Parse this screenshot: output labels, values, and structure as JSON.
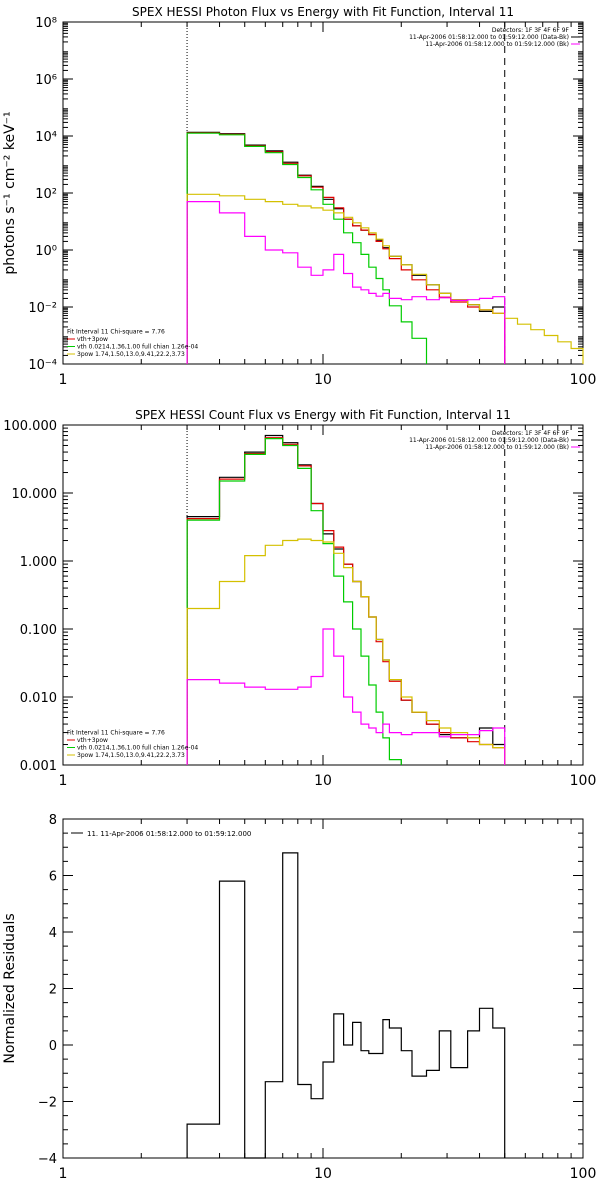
{
  "chart_data": [
    {
      "type": "line",
      "title": "SPEX HESSI Photon Flux vs Energy with Fit Function, Interval 11",
      "ylabel": "photons s⁻¹ cm⁻² keV⁻¹",
      "xlabel": "",
      "xscale": "log",
      "yscale": "log",
      "xlim": [
        1,
        100
      ],
      "ylim": [
        0.0001,
        100000000
      ],
      "xticks": [
        {
          "v": 1,
          "label": "1"
        },
        {
          "v": 10,
          "label": "10"
        },
        {
          "v": 100,
          "label": "100"
        }
      ],
      "yticks": [
        {
          "v": 0.0001,
          "label": "10⁻⁴"
        },
        {
          "v": 0.01,
          "label": "10⁻²"
        },
        {
          "v": 1,
          "label": "10⁰"
        },
        {
          "v": 100,
          "label": "10²"
        },
        {
          "v": 10000,
          "label": "10⁴"
        },
        {
          "v": 1000000,
          "label": "10⁶"
        },
        {
          "v": 100000000,
          "label": "10⁸"
        }
      ],
      "vlines": [
        {
          "x": 3,
          "style": "dotted"
        },
        {
          "x": 50,
          "style": "dashed"
        }
      ],
      "legend_top": {
        "lines": [
          {
            "text": "Detectors: 1F 3F 4F 6F 9F",
            "color": "#000000"
          },
          {
            "text": "11-Apr-2006 01:58:12.000 to 01:59:12.000 (Data-Bk)",
            "color": "#000000"
          },
          {
            "text": "11-Apr-2006 01:58:12.000 to 01:59:12.000 (Bk)",
            "color": "#ff00ff"
          }
        ]
      },
      "legend_bottom": {
        "lines": [
          {
            "text": "Fit Interval 11    Chi-square = 7.76",
            "color": "#000000"
          },
          {
            "text": "vth+3pow",
            "color": "#e00000"
          },
          {
            "text": "vth 0.0214,1.36,1.00  full chian 1.26e-04",
            "color": "#00cc00"
          },
          {
            "text": "3pow 1.74,1.50,13.0,9.41,22.2,3.73",
            "color": "#d4c000"
          }
        ]
      },
      "series": [
        {
          "name": "Data-Bk",
          "color": "#000000",
          "edges": [
            3,
            4,
            5,
            6,
            7,
            8,
            9,
            10,
            11,
            12,
            13,
            14,
            15,
            16,
            17,
            18,
            20,
            22,
            25,
            28,
            31,
            36,
            40,
            45,
            50
          ],
          "values": [
            13500,
            12000,
            4800,
            3000,
            1200,
            420,
            170,
            60,
            28,
            12,
            7,
            5,
            3.5,
            2.2,
            1.2,
            0.6,
            0.3,
            0.13,
            0.06,
            0.03,
            0.018,
            0.012,
            0.007,
            0.01
          ]
        },
        {
          "name": "vth+3pow",
          "color": "#e00000",
          "edges": [
            3,
            4,
            5,
            6,
            7,
            8,
            9,
            10,
            11,
            12,
            13,
            14,
            15,
            16,
            17,
            18,
            20,
            22,
            25,
            28,
            31,
            36,
            40,
            45,
            50
          ],
          "values": [
            13000,
            11500,
            4500,
            2800,
            1100,
            400,
            160,
            70,
            30,
            12,
            7,
            5,
            3.5,
            2,
            1.1,
            0.5,
            0.2,
            0.09,
            0.04,
            0.022,
            0.015,
            0.01,
            0.008,
            0.006
          ]
        },
        {
          "name": "vth",
          "color": "#00cc00",
          "edges": [
            3,
            4,
            5,
            6,
            7,
            8,
            9,
            10,
            11,
            12,
            13,
            14,
            15,
            16,
            17,
            18,
            20,
            22,
            25
          ],
          "values": [
            12500,
            11000,
            4300,
            2600,
            1000,
            350,
            130,
            40,
            12,
            4,
            1.8,
            0.7,
            0.25,
            0.1,
            0.04,
            0.011,
            0.003,
            0.0008
          ]
        },
        {
          "name": "3pow",
          "color": "#d4c000",
          "edges": [
            3,
            4,
            5,
            6,
            7,
            8,
            9,
            10,
            11,
            12,
            13,
            14,
            15,
            16,
            17,
            18,
            20,
            22,
            25,
            28,
            31,
            36,
            40,
            45,
            50,
            56,
            63,
            71,
            80,
            90,
            100
          ],
          "values": [
            90,
            80,
            60,
            50,
            40,
            35,
            30,
            25,
            20,
            14,
            9,
            6,
            4,
            2.4,
            1.4,
            0.6,
            0.3,
            0.14,
            0.06,
            0.03,
            0.018,
            0.012,
            0.008,
            0.006,
            0.004,
            0.0025,
            0.0016,
            0.001,
            0.0006,
            0.00035
          ]
        },
        {
          "name": "Bk",
          "color": "#ff00ff",
          "edges": [
            3,
            4,
            5,
            6,
            7,
            8,
            9,
            10,
            11,
            12,
            13,
            14,
            15,
            16,
            17,
            18,
            20,
            22,
            25,
            28,
            31,
            36,
            40,
            45,
            50
          ],
          "values": [
            50,
            20,
            3,
            1,
            0.8,
            0.25,
            0.13,
            0.2,
            0.7,
            0.15,
            0.05,
            0.04,
            0.03,
            0.024,
            0.03,
            0.02,
            0.018,
            0.023,
            0.018,
            0.021,
            0.017,
            0.018,
            0.02,
            0.023
          ]
        }
      ]
    },
    {
      "type": "line",
      "title": "SPEX HESSI Count Flux vs Energy with Fit Function, Interval 11",
      "xlabel": "",
      "ylabel": "",
      "xscale": "log",
      "yscale": "log",
      "xlim": [
        1,
        100
      ],
      "ylim": [
        0.001,
        100
      ],
      "xticks": [
        {
          "v": 1,
          "label": "1"
        },
        {
          "v": 10,
          "label": "10"
        },
        {
          "v": 100,
          "label": "100"
        }
      ],
      "yticks": [
        {
          "v": 0.001,
          "label": "0.001"
        },
        {
          "v": 0.01,
          "label": "0.010"
        },
        {
          "v": 0.1,
          "label": "0.100"
        },
        {
          "v": 1,
          "label": "1.000"
        },
        {
          "v": 10,
          "label": "10.000"
        },
        {
          "v": 100,
          "label": "100.000"
        }
      ],
      "vlines": [
        {
          "x": 3,
          "style": "dotted"
        },
        {
          "x": 50,
          "style": "dashed"
        }
      ],
      "legend_top": {
        "lines": [
          {
            "text": "Detectors: 1F 3F 4F 6F 9F",
            "color": "#000000"
          },
          {
            "text": "11-Apr-2006 01:58:12.000 to 01:59:12.000 (Data-Bk)",
            "color": "#000000"
          },
          {
            "text": "11-Apr-2006 01:58:12.000 to 01:59:12.000 (Bk)",
            "color": "#ff00ff"
          }
        ]
      },
      "legend_bottom": {
        "lines": [
          {
            "text": "Fit Interval 11    Chi-square = 7.76",
            "color": "#000000"
          },
          {
            "text": "vth+3pow",
            "color": "#e00000"
          },
          {
            "text": "vth 0.0214,1.36,1.00  full chian 1.26e-04",
            "color": "#00cc00"
          },
          {
            "text": "3pow 1.74,1.50,13.0,9.41,22.2,3.73",
            "color": "#d4c000"
          }
        ]
      },
      "series": [
        {
          "name": "Data-Bk",
          "color": "#000000",
          "edges": [
            3,
            4,
            5,
            6,
            7,
            8,
            9,
            10,
            11,
            12,
            13,
            14,
            15,
            16,
            17,
            18,
            20,
            22,
            25,
            28,
            31,
            36,
            40,
            45,
            50
          ],
          "values": [
            4.5,
            17,
            40,
            70,
            55,
            26,
            7,
            2.5,
            1.5,
            0.9,
            0.5,
            0.3,
            0.15,
            0.07,
            0.035,
            0.018,
            0.009,
            0.006,
            0.004,
            0.0028,
            0.0025,
            0.0025,
            0.0035,
            0.002
          ]
        },
        {
          "name": "vth+3pow",
          "color": "#e00000",
          "edges": [
            3,
            4,
            5,
            6,
            7,
            8,
            9,
            10,
            11,
            12,
            13,
            14,
            15,
            16,
            17,
            18,
            20,
            22,
            25,
            28,
            31,
            36,
            40,
            45,
            50
          ],
          "values": [
            4.2,
            16,
            38,
            65,
            52,
            25,
            7,
            2.8,
            1.6,
            0.9,
            0.5,
            0.3,
            0.15,
            0.065,
            0.033,
            0.017,
            0.009,
            0.006,
            0.004,
            0.003,
            0.0025,
            0.0022,
            0.002,
            0.0018
          ]
        },
        {
          "name": "vth",
          "color": "#00cc00",
          "edges": [
            3,
            4,
            5,
            6,
            7,
            8,
            9,
            10,
            11,
            12,
            13,
            14,
            15,
            16,
            17,
            18,
            20
          ],
          "values": [
            4,
            15,
            37,
            63,
            50,
            23,
            5.5,
            1.8,
            0.6,
            0.25,
            0.1,
            0.04,
            0.015,
            0.006,
            0.0025,
            0.0012
          ]
        },
        {
          "name": "3pow",
          "color": "#d4c000",
          "edges": [
            3,
            4,
            5,
            6,
            7,
            8,
            9,
            10,
            11,
            12,
            13,
            14,
            15,
            16,
            17,
            18,
            20,
            22,
            25,
            28,
            31,
            36,
            40,
            45,
            50
          ],
          "values": [
            0.2,
            0.5,
            1.2,
            1.7,
            2.0,
            2.1,
            2.0,
            1.9,
            1.3,
            0.8,
            0.5,
            0.3,
            0.15,
            0.07,
            0.035,
            0.018,
            0.01,
            0.006,
            0.0045,
            0.0035,
            0.003,
            0.0025,
            0.002,
            0.0018
          ]
        },
        {
          "name": "Bk",
          "color": "#ff00ff",
          "edges": [
            3,
            4,
            5,
            6,
            7,
            8,
            9,
            10,
            11,
            12,
            13,
            14,
            15,
            16,
            17,
            18,
            20,
            22,
            25,
            28,
            31,
            36,
            40,
            45,
            50
          ],
          "values": [
            0.018,
            0.016,
            0.014,
            0.013,
            0.013,
            0.014,
            0.02,
            0.1,
            0.04,
            0.01,
            0.006,
            0.004,
            0.0035,
            0.003,
            0.004,
            0.003,
            0.0028,
            0.003,
            0.003,
            0.0026,
            0.0028,
            0.0028,
            0.0032,
            0.0035
          ]
        }
      ]
    },
    {
      "type": "line",
      "title": "",
      "xlabel": "",
      "ylabel": "Normalized Residuals",
      "xscale": "log",
      "yscale": "linear",
      "xlim": [
        1,
        100
      ],
      "ylim": [
        -4,
        8
      ],
      "xticks": [
        {
          "v": 1,
          "label": "1"
        },
        {
          "v": 10,
          "label": "10"
        },
        {
          "v": 100,
          "label": "100"
        }
      ],
      "yticks": [
        {
          "v": -4,
          "label": "−4"
        },
        {
          "v": -2,
          "label": "−2"
        },
        {
          "v": 0,
          "label": "0"
        },
        {
          "v": 2,
          "label": "2"
        },
        {
          "v": 4,
          "label": "4"
        },
        {
          "v": 6,
          "label": "6"
        },
        {
          "v": 8,
          "label": "8"
        }
      ],
      "legend_top": {
        "lines": [
          {
            "text": "11. 11-Apr-2006 01:58:12.000 to 01:59:12.000",
            "color": "#000000"
          }
        ]
      },
      "series": [
        {
          "name": "11. 11-Apr-2006 01:58:12.000 to 01:59:12.000",
          "color": "#000000",
          "edges": [
            3,
            4,
            5,
            6,
            7,
            8,
            9,
            10,
            11,
            12,
            13,
            14,
            15,
            16,
            17,
            18,
            20,
            22,
            25,
            28,
            31,
            36,
            40,
            45,
            50
          ],
          "values": [
            -2.8,
            5.8,
            -4.0,
            -1.3,
            6.8,
            -1.4,
            -1.9,
            -0.6,
            1.1,
            0.0,
            0.8,
            -0.2,
            -0.3,
            -0.3,
            0.9,
            0.6,
            -0.2,
            -1.1,
            -0.9,
            0.5,
            -0.8,
            0.5,
            1.3,
            0.6
          ]
        }
      ]
    }
  ]
}
